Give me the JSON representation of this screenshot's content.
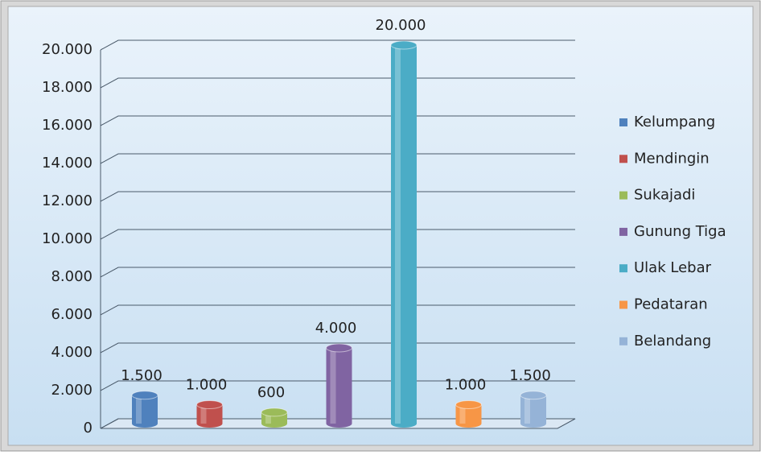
{
  "chart_data": {
    "type": "bar",
    "categories": [
      null
    ],
    "series": [
      {
        "name": "Kelumpang",
        "color": "#4f81bd",
        "values": [
          1500
        ],
        "value_labels": [
          "1.500"
        ]
      },
      {
        "name": "Mendingin",
        "color": "#c0504d",
        "values": [
          1000
        ],
        "value_labels": [
          "1.000"
        ]
      },
      {
        "name": "Sukajadi",
        "color": "#9bbb59",
        "values": [
          600
        ],
        "value_labels": [
          "600"
        ]
      },
      {
        "name": "Gunung Tiga",
        "color": "#8064a2",
        "values": [
          4000
        ],
        "value_labels": [
          "4.000"
        ]
      },
      {
        "name": "Ulak Lebar",
        "color": "#4bacc6",
        "values": [
          20000
        ],
        "value_labels": [
          "20.000"
        ]
      },
      {
        "name": "Pedataran",
        "color": "#f79646",
        "values": [
          1000
        ],
        "value_labels": [
          "1.000"
        ]
      },
      {
        "name": "Belandang",
        "color": "#95b3d7",
        "values": [
          1500
        ],
        "value_labels": [
          "1.500"
        ]
      }
    ],
    "ylim": [
      0,
      20000
    ],
    "yticks": [
      0,
      {
        "value": 2000,
        "label": "2.000"
      },
      {
        "value": 4000,
        "label": "4.000"
      },
      {
        "value": 6000,
        "label": "6.000"
      },
      {
        "value": 8000,
        "label": "8.000"
      },
      {
        "value": 10000,
        "label": "10.000"
      },
      {
        "value": 12000,
        "label": "12.000"
      },
      {
        "value": 14000,
        "label": "14.000"
      },
      {
        "value": 16000,
        "label": "16.000"
      },
      {
        "value": 18000,
        "label": "18.000"
      },
      {
        "value": 20000,
        "label": "20.000"
      }
    ],
    "grid": true,
    "legend": "right"
  }
}
